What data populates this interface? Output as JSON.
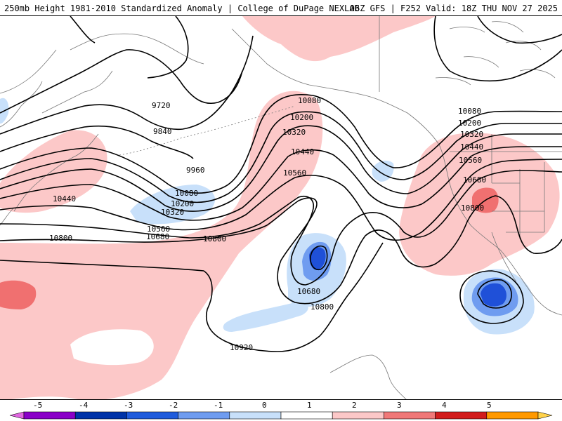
{
  "header": {
    "left_title": "250mb Height 1981-2010 Standardized Anomaly | College of DuPage NEXLAB",
    "right_title": "06Z GFS | F252 Valid: 18Z THU NOV 27 2025"
  },
  "contours": {
    "labels": [
      "9720",
      "9840",
      "9960",
      "10080",
      "10200",
      "10320",
      "10440",
      "10560",
      "10680",
      "10800",
      "10920",
      "10080",
      "10200",
      "10320",
      "10440",
      "10560",
      "10080",
      "10200",
      "10320",
      "10440",
      "10560",
      "10680",
      "10800",
      "10680",
      "10800",
      "10800"
    ]
  },
  "legend": {
    "ticks": [
      "-5",
      "-4",
      "-3",
      "-2",
      "-1",
      "0",
      "1",
      "2",
      "3",
      "4",
      "5"
    ],
    "colors": [
      "#e066e0",
      "#8a00c8",
      "#0033a8",
      "#1f5bdc",
      "#6f9cf0",
      "#c8e0fa",
      "#ffffff",
      "#fcc8c8",
      "#f07878",
      "#d21c1c",
      "#ff9900",
      "#ffd24a"
    ]
  },
  "colors": {
    "pos1": "#fcc8c8",
    "pos2": "#f07070",
    "neg1": "#c8e0fa",
    "neg2": "#6f9cf0",
    "neg3": "#1f50d8",
    "land": "#888888",
    "contour": "#000000"
  }
}
